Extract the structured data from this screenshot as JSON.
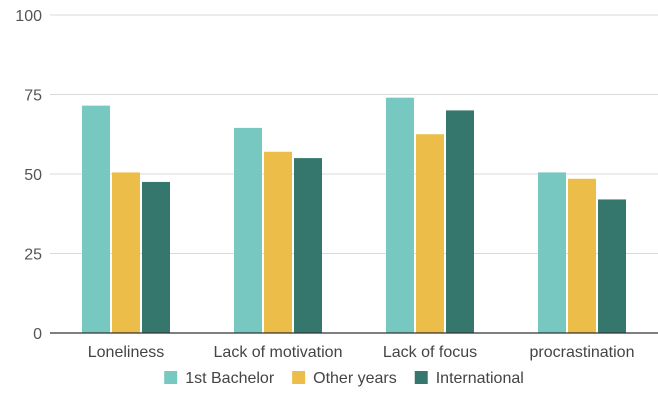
{
  "chart_data": {
    "type": "bar",
    "title": "",
    "xlabel": "",
    "ylabel": "",
    "categories": [
      "Loneliness",
      "Lack of motivation",
      "Lack of focus",
      "procrastination"
    ],
    "series": [
      {
        "name": "1st Bachelor",
        "values": [
          71.5,
          64.5,
          74,
          50.5
        ],
        "color": "#76c8c0"
      },
      {
        "name": "Other years",
        "values": [
          50.5,
          57,
          62.5,
          48.5
        ],
        "color": "#ecbd48"
      },
      {
        "name": "International",
        "values": [
          47.5,
          55,
          70,
          42
        ],
        "color": "#35776c"
      }
    ],
    "ylim": [
      0,
      100
    ],
    "yticks": [
      0,
      25,
      50,
      75,
      100
    ],
    "grid": true,
    "legend": "bottom-center"
  }
}
